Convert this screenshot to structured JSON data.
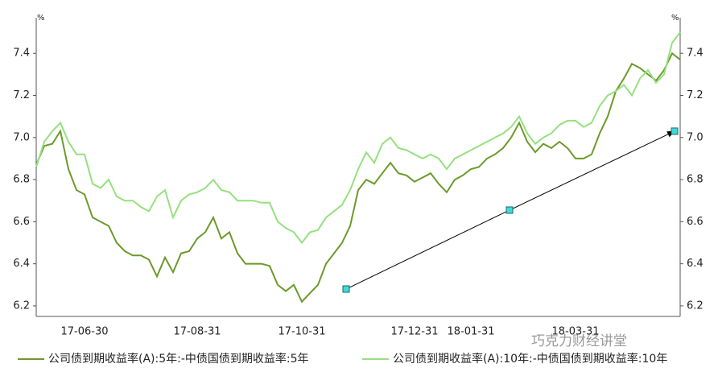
{
  "chart_data": {
    "type": "line",
    "y_unit": "%",
    "y2_unit": "%",
    "categories": [
      null,
      null,
      null,
      null,
      null,
      null,
      "17-06-30",
      null,
      null,
      null,
      null,
      null,
      null,
      null,
      null,
      null,
      null,
      null,
      null,
      null,
      "17-08-31",
      null,
      null,
      null,
      null,
      null,
      null,
      null,
      null,
      null,
      null,
      null,
      null,
      "17-10-31",
      null,
      null,
      null,
      null,
      null,
      null,
      null,
      null,
      null,
      null,
      null,
      null,
      null,
      "17-12-31",
      null,
      null,
      null,
      null,
      null,
      null,
      "18-01-31",
      null,
      null,
      null,
      null,
      null,
      null,
      null,
      null,
      null,
      null,
      null,
      null,
      "18-03-31",
      null,
      null,
      null,
      null,
      null,
      null,
      null,
      null,
      null,
      null,
      null,
      null,
      null
    ],
    "series": [
      {
        "name": "公司债到期收益率(A):5年:-中债国债到期收益率:5年",
        "color": "#6b9a2a",
        "values": [
          6.87,
          6.96,
          6.97,
          7.03,
          6.85,
          6.75,
          6.73,
          6.62,
          6.6,
          6.58,
          6.5,
          6.46,
          6.44,
          6.44,
          6.42,
          6.34,
          6.43,
          6.36,
          6.45,
          6.46,
          6.52,
          6.55,
          6.62,
          6.52,
          6.55,
          6.45,
          6.4,
          6.4,
          6.4,
          6.39,
          6.3,
          6.27,
          6.3,
          6.22,
          6.26,
          6.3,
          6.4,
          6.45,
          6.5,
          6.58,
          6.75,
          6.8,
          6.78,
          6.83,
          6.88,
          6.83,
          6.82,
          6.79,
          6.81,
          6.83,
          6.78,
          6.74,
          6.8,
          6.82,
          6.85,
          6.86,
          6.9,
          6.92,
          6.95,
          7.0,
          7.07,
          6.98,
          6.93,
          6.97,
          6.95,
          6.98,
          6.95,
          6.9,
          6.9,
          6.92,
          7.02,
          7.1,
          7.22,
          7.28,
          7.35,
          7.33,
          7.3,
          7.27,
          7.32,
          7.4,
          7.37
        ]
      },
      {
        "name": "公司债到期收益率(A):10年:-中债国债到期收益率:10年",
        "color": "#95e07f",
        "values": [
          6.86,
          6.98,
          7.03,
          7.07,
          6.98,
          6.92,
          6.92,
          6.78,
          6.76,
          6.8,
          6.72,
          6.7,
          6.7,
          6.67,
          6.65,
          6.72,
          6.75,
          6.62,
          6.7,
          6.73,
          6.74,
          6.76,
          6.8,
          6.75,
          6.74,
          6.7,
          6.7,
          6.7,
          6.69,
          6.69,
          6.6,
          6.57,
          6.55,
          6.5,
          6.55,
          6.56,
          6.62,
          6.65,
          6.68,
          6.75,
          6.85,
          6.93,
          6.88,
          6.97,
          7.0,
          6.95,
          6.94,
          6.92,
          6.9,
          6.92,
          6.9,
          6.85,
          6.9,
          6.92,
          6.94,
          6.96,
          6.98,
          7.0,
          7.02,
          7.05,
          7.1,
          7.02,
          6.97,
          7.0,
          7.02,
          7.06,
          7.08,
          7.08,
          7.05,
          7.07,
          7.15,
          7.2,
          7.22,
          7.25,
          7.2,
          7.28,
          7.32,
          7.26,
          7.3,
          7.45,
          7.5
        ]
      }
    ],
    "arrow": {
      "x": [
        38.5,
        58.8,
        79.3
      ],
      "y": [
        6.28,
        6.655,
        7.03
      ],
      "color": "#40d8d8"
    },
    "ylim": [
      6.15,
      7.55
    ],
    "yticks": [
      6.2,
      6.4,
      6.6,
      6.8,
      {
        "value": 7,
        "label": "7.0"
      },
      7.2,
      7.4
    ],
    "y2lim": [
      6.15,
      7.55
    ],
    "y2ticks": [
      6.2,
      6.4,
      6.6,
      6.8,
      {
        "value": 7,
        "label": "7.0"
      },
      7.2,
      7.4
    ],
    "watermark": "巧克力财经讲堂"
  }
}
